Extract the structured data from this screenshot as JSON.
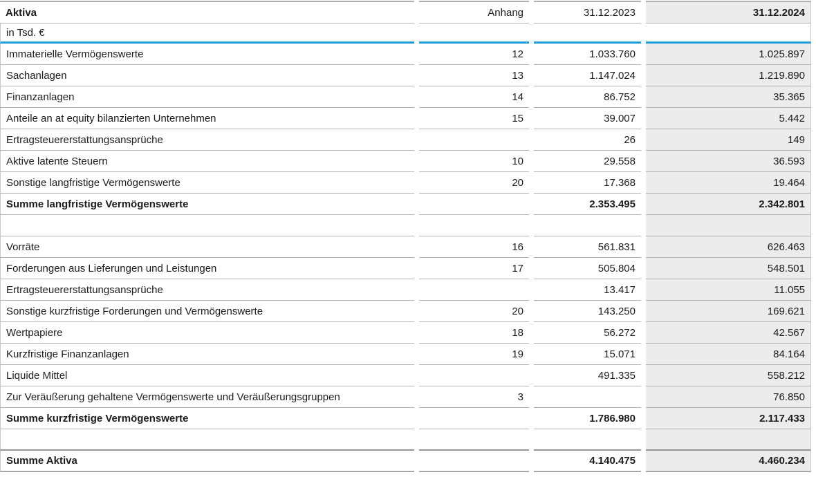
{
  "table": {
    "title": "Aktiva",
    "unit_label": "in Tsd. €",
    "columns": {
      "note": "Anhang",
      "prev": "31.12.2023",
      "curr": "31.12.2024"
    },
    "rows": [
      {
        "label": "Immaterielle Vermögenswerte",
        "note": "12",
        "prev": "1.033.760",
        "curr": "1.025.897"
      },
      {
        "label": "Sachanlagen",
        "note": "13",
        "prev": "1.147.024",
        "curr": "1.219.890"
      },
      {
        "label": "Finanzanlagen",
        "note": "14",
        "prev": "86.752",
        "curr": "35.365"
      },
      {
        "label": "Anteile an at equity bilanzierten Unternehmen",
        "note": "15",
        "prev": "39.007",
        "curr": "5.442"
      },
      {
        "label": "Ertragsteuererstattungsansprüche",
        "note": "",
        "prev": "26",
        "curr": "149"
      },
      {
        "label": "Aktive latente Steuern",
        "note": "10",
        "prev": "29.558",
        "curr": "36.593"
      },
      {
        "label": "Sonstige langfristige Vermögenswerte",
        "note": "20",
        "prev": "17.368",
        "curr": "19.464"
      },
      {
        "label": "Summe langfristige Vermögenswerte",
        "note": "",
        "prev": "2.353.495",
        "curr": "2.342.801"
      },
      {
        "label": "",
        "note": "",
        "prev": "",
        "curr": ""
      },
      {
        "label": "Vorräte",
        "note": "16",
        "prev": "561.831",
        "curr": "626.463"
      },
      {
        "label": "Forderungen aus Lieferungen und Leistungen",
        "note": "17",
        "prev": "505.804",
        "curr": "548.501"
      },
      {
        "label": "Ertragsteuererstattungsansprüche",
        "note": "",
        "prev": "13.417",
        "curr": "11.055"
      },
      {
        "label": "Sonstige kurzfristige Forderungen und Vermögenswerte",
        "note": "20",
        "prev": "143.250",
        "curr": "169.621"
      },
      {
        "label": "Wertpapiere",
        "note": "18",
        "prev": "56.272",
        "curr": "42.567"
      },
      {
        "label": "Kurzfristige Finanzanlagen",
        "note": "19",
        "prev": "15.071",
        "curr": "84.164"
      },
      {
        "label": "Liquide Mittel",
        "note": "",
        "prev": "491.335",
        "curr": "558.212"
      },
      {
        "label": "Zur Veräußerung gehaltene Vermögenswerte und Veräußerungsgruppen",
        "note": "3",
        "prev": "",
        "curr": "76.850"
      },
      {
        "label": "Summe kurzfristige Vermögenswerte",
        "note": "",
        "prev": "1.786.980",
        "curr": "2.117.433"
      },
      {
        "label": "",
        "note": "",
        "prev": "",
        "curr": ""
      },
      {
        "label": "Summe Aktiva",
        "note": "",
        "prev": "4.140.475",
        "curr": "4.460.234"
      }
    ],
    "colors": {
      "accent_blue": "#1e9ed9",
      "highlight_column_bg": "#ececec",
      "grid_line": "#b2b2b2"
    }
  }
}
